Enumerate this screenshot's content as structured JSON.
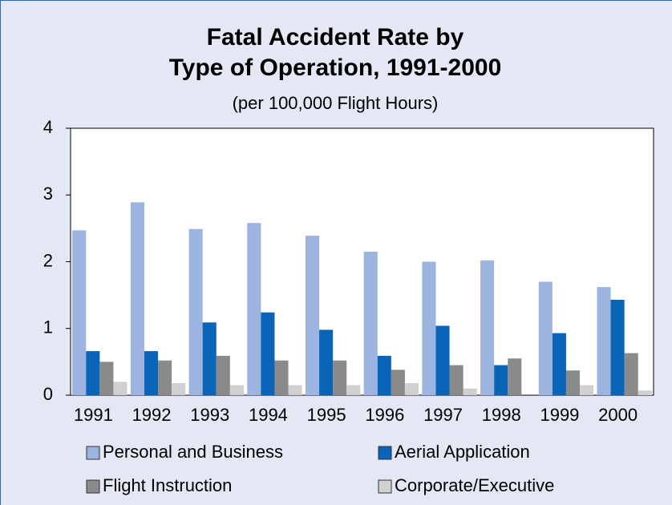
{
  "chart_data": {
    "type": "bar",
    "title": [
      "Fatal Accident Rate by",
      "Type of Operation, 1991-2000"
    ],
    "subtitle": "(per 100,000 Flight Hours)",
    "categories": [
      "1991",
      "1992",
      "1993",
      "1994",
      "1995",
      "1996",
      "1997",
      "1998",
      "1999",
      "2000"
    ],
    "series": [
      {
        "name": "Personal and Business",
        "color": "#9db3e0",
        "values": [
          2.47,
          2.89,
          2.49,
          2.58,
          2.39,
          2.15,
          2.0,
          2.02,
          1.7,
          1.62
        ]
      },
      {
        "name": "Aerial Application",
        "color": "#0a64b8",
        "values": [
          0.66,
          0.66,
          1.09,
          1.24,
          0.98,
          0.59,
          1.04,
          0.45,
          0.93,
          1.43
        ]
      },
      {
        "name": "Flight Instruction",
        "color": "#8a8a8a",
        "values": [
          0.5,
          0.52,
          0.59,
          0.52,
          0.52,
          0.38,
          0.45,
          0.55,
          0.37,
          0.63
        ]
      },
      {
        "name": "Corporate/Executive",
        "color": "#d0d0d0",
        "values": [
          0.2,
          0.18,
          0.15,
          0.15,
          0.15,
          0.18,
          0.1,
          null,
          0.15,
          0.07
        ]
      }
    ],
    "ylim": [
      0,
      4
    ],
    "yticks": [
      0,
      1,
      2,
      3,
      4
    ]
  }
}
